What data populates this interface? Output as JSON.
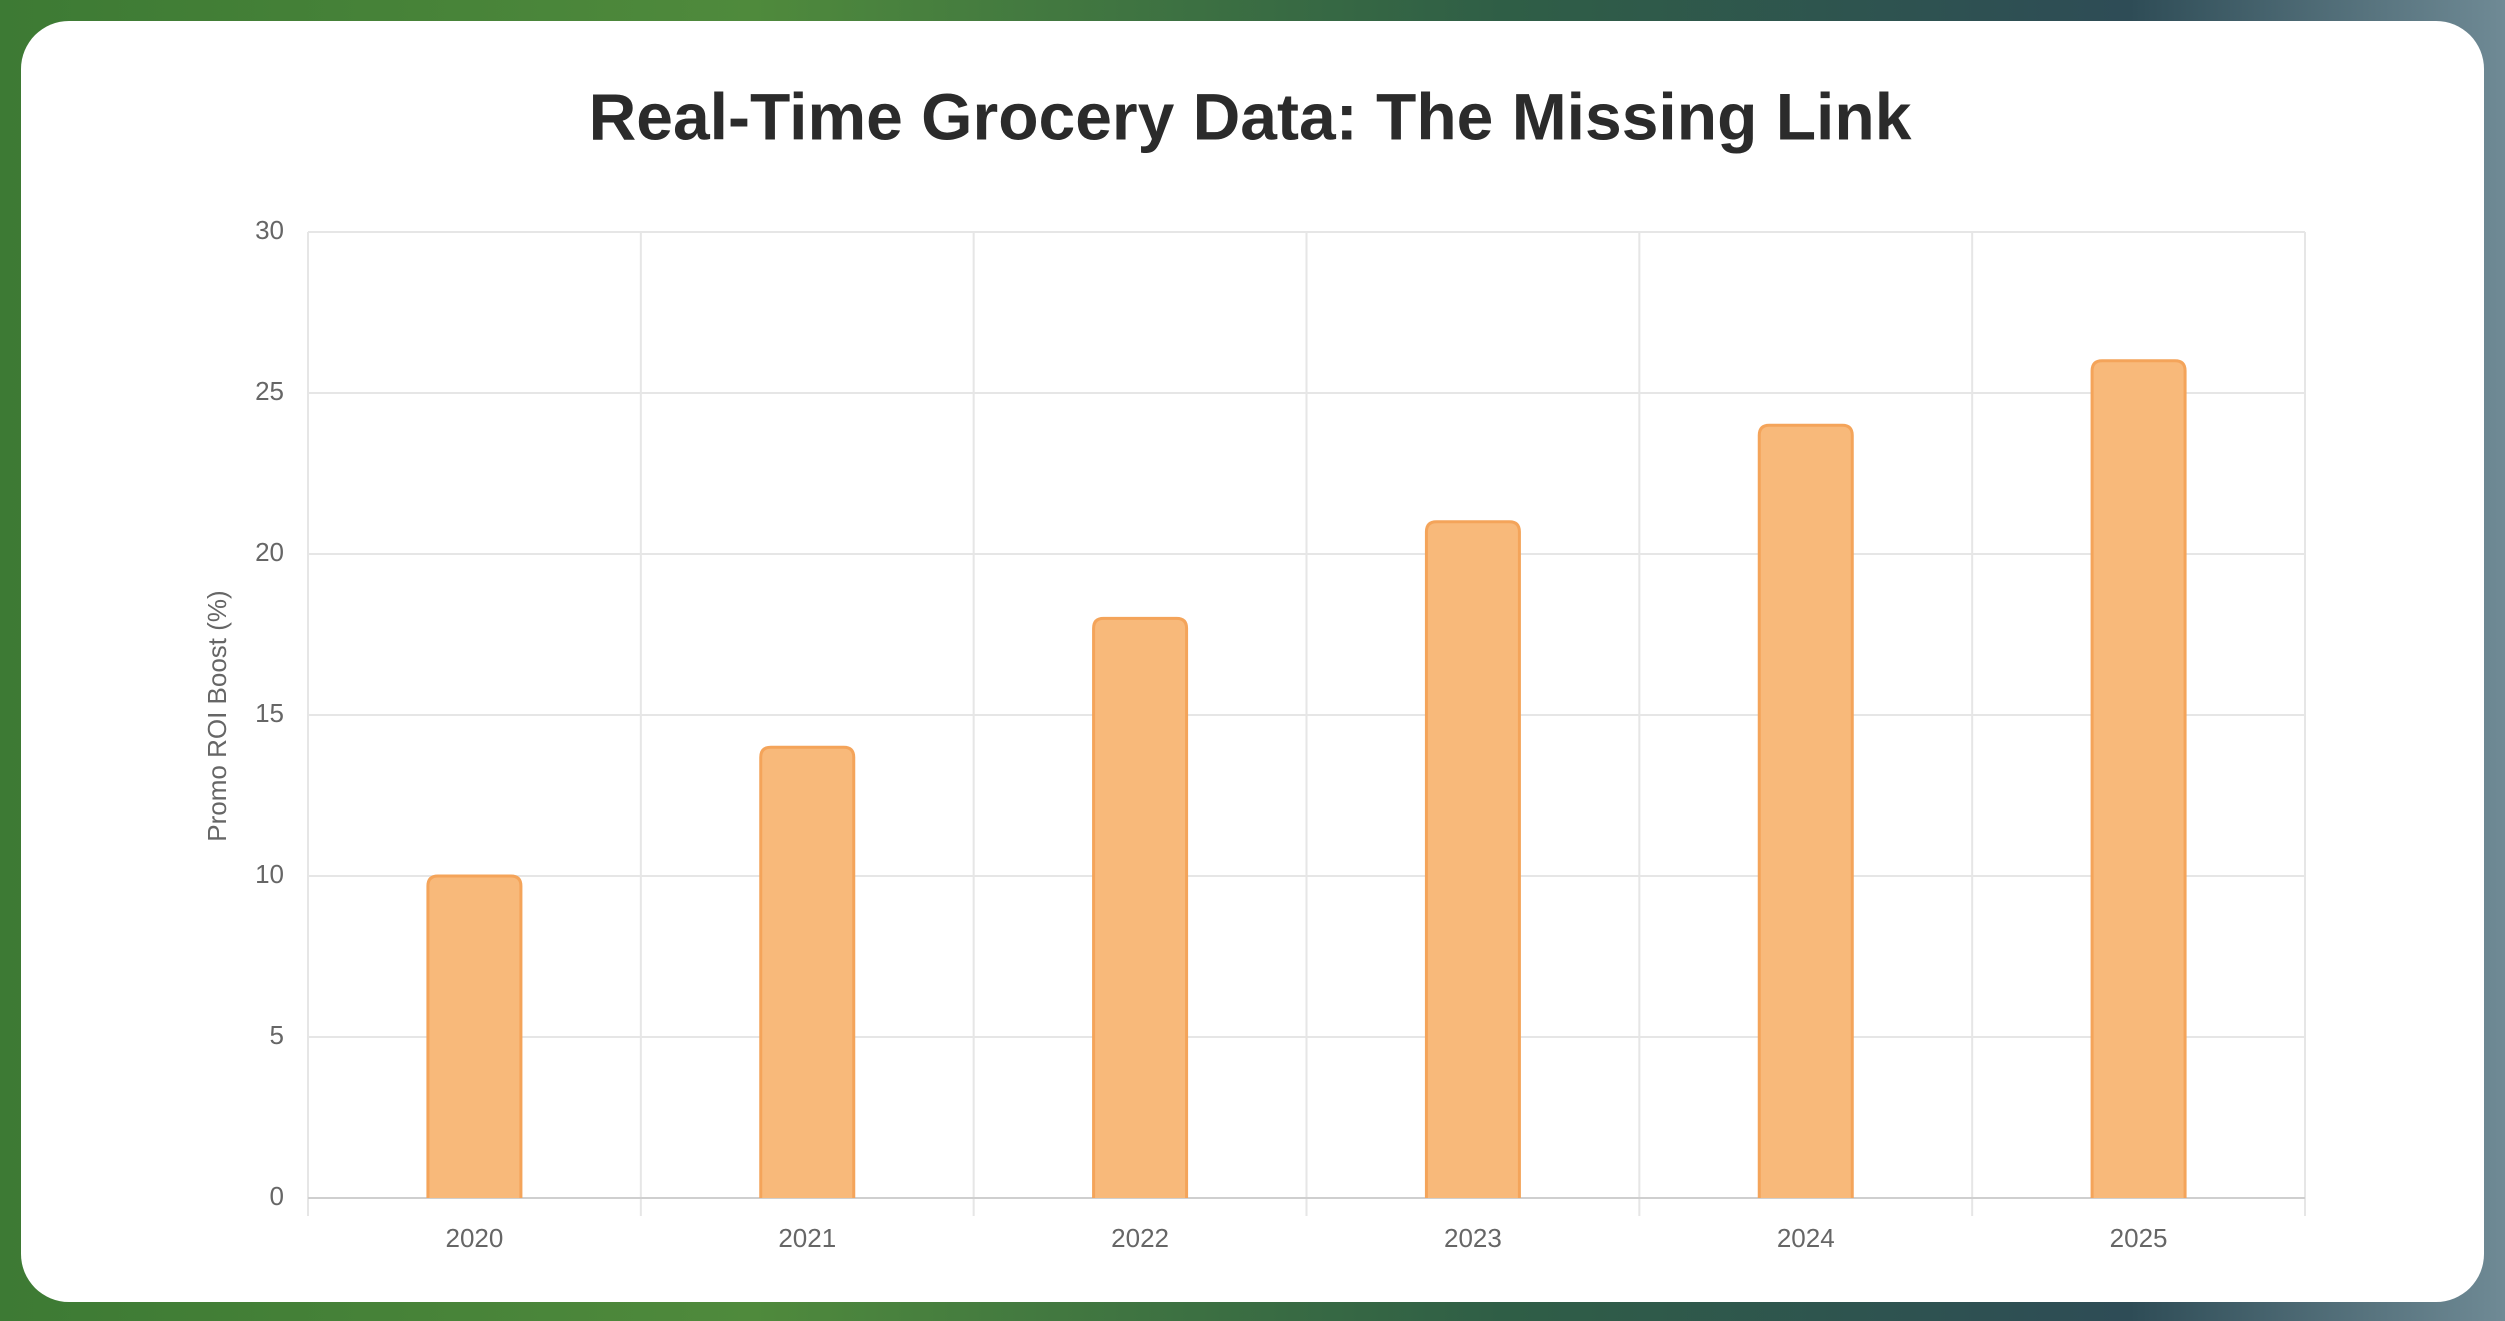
{
  "chart_data": {
    "type": "bar",
    "title": "Real-Time Grocery Data: The Missing Link",
    "y_label": "Promo ROI Boost (%)",
    "categories": [
      "2020",
      "2021",
      "2022",
      "2023",
      "2024",
      "2025"
    ],
    "values": [
      10,
      14,
      18,
      21,
      24,
      26
    ],
    "color": "#f8b97a",
    "border_color": "#f4a45a",
    "ylim": [
      0,
      30
    ],
    "yticks": [
      0,
      5,
      10,
      15,
      20,
      25,
      30
    ],
    "grid": true
  }
}
